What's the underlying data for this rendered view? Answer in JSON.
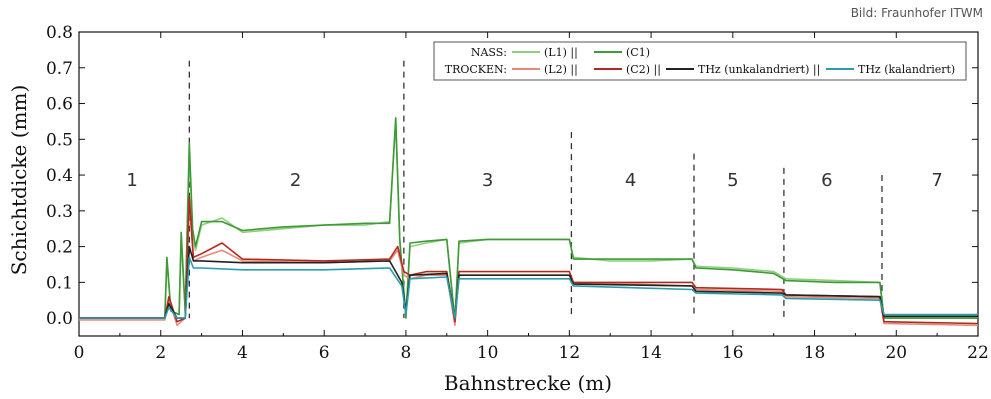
{
  "credit": "Bild: Fraunhofer ITWM",
  "chart_data": {
    "type": "line",
    "xlabel": "Bahnstrecke (m)",
    "ylabel": "Schichtdicke (mm)",
    "xlim": [
      0,
      22
    ],
    "ylim": [
      -0.05,
      0.8
    ],
    "xticks": [
      "0",
      "2",
      "4",
      "6",
      "8",
      "10",
      "12",
      "14",
      "16",
      "18",
      "20",
      "22"
    ],
    "yticks": [
      "0.0",
      "0.1",
      "0.2",
      "0.3",
      "0.4",
      "0.5",
      "0.6",
      "0.7",
      "0.8"
    ],
    "grid": false,
    "legend_position": "top-right",
    "legend": {
      "nass_label": "NASS:",
      "trocken_label": "TROCKEN:"
    },
    "sections": [
      {
        "label": "1",
        "x": 1.3
      },
      {
        "label": "2",
        "x": 5.3
      },
      {
        "label": "3",
        "x": 10.0
      },
      {
        "label": "4",
        "x": 13.5
      },
      {
        "label": "5",
        "x": 16.0
      },
      {
        "label": "6",
        "x": 18.3
      },
      {
        "label": "7",
        "x": 21.0
      }
    ],
    "section_label_y": 0.37,
    "dividers": [
      {
        "x": 2.7,
        "top": 0.72
      },
      {
        "x": 7.95,
        "top": 0.72
      },
      {
        "x": 12.05,
        "top": 0.52
      },
      {
        "x": 15.05,
        "top": 0.46
      },
      {
        "x": 17.25,
        "top": 0.42
      },
      {
        "x": 19.65,
        "top": 0.4
      }
    ],
    "series": [
      {
        "name": "(L1) ||",
        "group": "NASS",
        "color": "#8fcf7f",
        "points": [
          [
            0,
            0.0
          ],
          [
            2.1,
            0.0
          ],
          [
            2.15,
            0.16
          ],
          [
            2.25,
            0.02
          ],
          [
            2.45,
            0.01
          ],
          [
            2.5,
            0.22
          ],
          [
            2.6,
            0.02
          ],
          [
            2.7,
            0.47
          ],
          [
            2.78,
            0.24
          ],
          [
            2.85,
            0.19
          ],
          [
            3.0,
            0.26
          ],
          [
            3.5,
            0.28
          ],
          [
            4.0,
            0.24
          ],
          [
            5.0,
            0.25
          ],
          [
            6.0,
            0.26
          ],
          [
            7.0,
            0.26
          ],
          [
            7.6,
            0.27
          ],
          [
            7.75,
            0.55
          ],
          [
            7.85,
            0.21
          ],
          [
            8.0,
            0.01
          ],
          [
            8.1,
            0.2
          ],
          [
            8.5,
            0.21
          ],
          [
            9.0,
            0.22
          ],
          [
            9.2,
            0.0
          ],
          [
            9.3,
            0.21
          ],
          [
            10.0,
            0.22
          ],
          [
            11.0,
            0.22
          ],
          [
            12.0,
            0.22
          ],
          [
            12.1,
            0.17
          ],
          [
            13.0,
            0.16
          ],
          [
            14.0,
            0.16
          ],
          [
            15.0,
            0.165
          ],
          [
            15.1,
            0.145
          ],
          [
            16.0,
            0.14
          ],
          [
            17.0,
            0.13
          ],
          [
            17.3,
            0.11
          ],
          [
            18.5,
            0.105
          ],
          [
            19.6,
            0.1
          ],
          [
            19.7,
            0.0
          ],
          [
            22,
            0.0
          ]
        ]
      },
      {
        "name": "(C1)",
        "group": "NASS",
        "color": "#3d9a37",
        "points": [
          [
            0,
            0.0
          ],
          [
            2.1,
            0.0
          ],
          [
            2.15,
            0.17
          ],
          [
            2.25,
            0.02
          ],
          [
            2.45,
            0.01
          ],
          [
            2.5,
            0.24
          ],
          [
            2.6,
            0.02
          ],
          [
            2.7,
            0.49
          ],
          [
            2.78,
            0.25
          ],
          [
            2.85,
            0.2
          ],
          [
            3.0,
            0.27
          ],
          [
            3.5,
            0.27
          ],
          [
            4.0,
            0.245
          ],
          [
            5.0,
            0.255
          ],
          [
            6.0,
            0.26
          ],
          [
            7.0,
            0.265
          ],
          [
            7.6,
            0.265
          ],
          [
            7.75,
            0.56
          ],
          [
            7.85,
            0.22
          ],
          [
            8.0,
            0.0
          ],
          [
            8.1,
            0.21
          ],
          [
            8.5,
            0.215
          ],
          [
            9.0,
            0.22
          ],
          [
            9.2,
            -0.01
          ],
          [
            9.3,
            0.215
          ],
          [
            10.0,
            0.22
          ],
          [
            11.0,
            0.22
          ],
          [
            12.0,
            0.22
          ],
          [
            12.1,
            0.165
          ],
          [
            13.0,
            0.165
          ],
          [
            14.0,
            0.165
          ],
          [
            15.0,
            0.165
          ],
          [
            15.1,
            0.14
          ],
          [
            16.0,
            0.135
          ],
          [
            17.0,
            0.125
          ],
          [
            17.3,
            0.105
          ],
          [
            18.5,
            0.1
          ],
          [
            19.6,
            0.1
          ],
          [
            19.7,
            0.0
          ],
          [
            22,
            0.0
          ]
        ]
      },
      {
        "name": "(L2) ||",
        "group": "TROCKEN",
        "color": "#e88a7a",
        "points": [
          [
            0,
            -0.005
          ],
          [
            2.1,
            -0.005
          ],
          [
            2.2,
            0.05
          ],
          [
            2.4,
            -0.02
          ],
          [
            2.6,
            0.0
          ],
          [
            2.7,
            0.33
          ],
          [
            2.8,
            0.16
          ],
          [
            3.0,
            0.17
          ],
          [
            3.5,
            0.19
          ],
          [
            4.0,
            0.16
          ],
          [
            6.0,
            0.155
          ],
          [
            7.6,
            0.16
          ],
          [
            7.8,
            0.19
          ],
          [
            7.95,
            0.12
          ],
          [
            8.1,
            0.11
          ],
          [
            8.5,
            0.12
          ],
          [
            9.0,
            0.12
          ],
          [
            9.2,
            -0.02
          ],
          [
            9.3,
            0.12
          ],
          [
            12.0,
            0.12
          ],
          [
            12.1,
            0.1
          ],
          [
            15.0,
            0.09
          ],
          [
            15.1,
            0.08
          ],
          [
            17.2,
            0.075
          ],
          [
            17.3,
            0.06
          ],
          [
            19.6,
            0.055
          ],
          [
            19.7,
            -0.015
          ],
          [
            22,
            -0.02
          ]
        ]
      },
      {
        "name": "(C2) ||",
        "group": "TROCKEN",
        "color": "#b22a1f",
        "points": [
          [
            0,
            0.0
          ],
          [
            2.1,
            0.0
          ],
          [
            2.2,
            0.06
          ],
          [
            2.4,
            -0.01
          ],
          [
            2.6,
            0.0
          ],
          [
            2.7,
            0.34
          ],
          [
            2.8,
            0.17
          ],
          [
            3.0,
            0.18
          ],
          [
            3.5,
            0.21
          ],
          [
            4.0,
            0.165
          ],
          [
            6.0,
            0.16
          ],
          [
            7.6,
            0.165
          ],
          [
            7.8,
            0.2
          ],
          [
            7.95,
            0.13
          ],
          [
            8.1,
            0.12
          ],
          [
            8.5,
            0.13
          ],
          [
            9.0,
            0.13
          ],
          [
            9.2,
            -0.01
          ],
          [
            9.3,
            0.13
          ],
          [
            12.0,
            0.13
          ],
          [
            12.1,
            0.1
          ],
          [
            15.0,
            0.1
          ],
          [
            15.1,
            0.085
          ],
          [
            17.2,
            0.08
          ],
          [
            17.3,
            0.065
          ],
          [
            19.6,
            0.06
          ],
          [
            19.7,
            -0.01
          ],
          [
            22,
            -0.015
          ]
        ]
      },
      {
        "name": "THz (unkalandriert) ||",
        "group": "TROCKEN",
        "color": "#222222",
        "points": [
          [
            0,
            0.0
          ],
          [
            2.1,
            0.0
          ],
          [
            2.2,
            0.04
          ],
          [
            2.4,
            0.0
          ],
          [
            2.6,
            0.0
          ],
          [
            2.7,
            0.2
          ],
          [
            2.8,
            0.16
          ],
          [
            3.0,
            0.16
          ],
          [
            4.0,
            0.155
          ],
          [
            6.0,
            0.155
          ],
          [
            7.6,
            0.16
          ],
          [
            7.9,
            0.1
          ],
          [
            8.0,
            0.02
          ],
          [
            8.1,
            0.12
          ],
          [
            9.0,
            0.125
          ],
          [
            9.2,
            0.0
          ],
          [
            9.3,
            0.12
          ],
          [
            12.0,
            0.12
          ],
          [
            12.1,
            0.095
          ],
          [
            15.0,
            0.09
          ],
          [
            15.1,
            0.075
          ],
          [
            17.2,
            0.07
          ],
          [
            17.3,
            0.065
          ],
          [
            19.6,
            0.06
          ],
          [
            19.7,
            0.005
          ],
          [
            22,
            0.005
          ]
        ]
      },
      {
        "name": "THz (kalandriert)",
        "group": "TROCKEN",
        "color": "#2a9dad",
        "points": [
          [
            0,
            0.0
          ],
          [
            2.1,
            0.0
          ],
          [
            2.2,
            0.03
          ],
          [
            2.4,
            0.0
          ],
          [
            2.6,
            0.0
          ],
          [
            2.7,
            0.17
          ],
          [
            2.8,
            0.14
          ],
          [
            3.0,
            0.14
          ],
          [
            4.0,
            0.135
          ],
          [
            6.0,
            0.135
          ],
          [
            7.6,
            0.14
          ],
          [
            7.9,
            0.09
          ],
          [
            8.0,
            0.01
          ],
          [
            8.1,
            0.11
          ],
          [
            9.0,
            0.115
          ],
          [
            9.2,
            0.0
          ],
          [
            9.3,
            0.11
          ],
          [
            12.0,
            0.11
          ],
          [
            12.1,
            0.09
          ],
          [
            15.0,
            0.08
          ],
          [
            15.1,
            0.07
          ],
          [
            17.2,
            0.065
          ],
          [
            17.3,
            0.055
          ],
          [
            19.6,
            0.05
          ],
          [
            19.7,
            0.01
          ],
          [
            22,
            0.01
          ]
        ]
      }
    ]
  }
}
